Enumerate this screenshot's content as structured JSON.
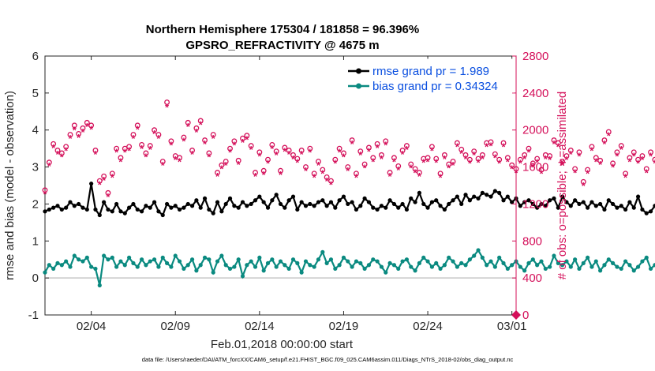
{
  "chart_data": {
    "type": "line",
    "title": [
      "Northern Hemisphere 175304 / 181858 = 96.396%",
      "GPSRO_REFRACTIVITY @ 4675 m"
    ],
    "xlabel": "Feb.01,2018 00:00:00 start",
    "ylabel_left": "rmse and bias (model - observation)",
    "ylabel_right": "# of obs: o=possible; ∗=assimilated",
    "footer": "data file: /Users/raeder/DAI/ATM_forcXX/CAM6_setup/f.e21.FHIST_BGC.f09_025.CAM6assim.011/Diags_NTrS_2018-02/obs_diag_output.nc",
    "x_ticks": [
      "02/04",
      "02/09",
      "02/14",
      "02/19",
      "02/24",
      "03/01"
    ],
    "x_tick_days": [
      3,
      8,
      13,
      18,
      23,
      28
    ],
    "xlim_days": [
      0.25,
      28.25
    ],
    "ylim_left": [
      -1,
      6
    ],
    "y_ticks_left": [
      "-1",
      "0",
      "1",
      "2",
      "3",
      "4",
      "5",
      "6"
    ],
    "ylim_right": [
      0,
      2800
    ],
    "y_ticks_right": [
      "0",
      "400",
      "800",
      "1200",
      "1600",
      "2000",
      "2400",
      "2800"
    ],
    "grid": false,
    "legend_position": "top-right",
    "colors": {
      "rmse": "#000000",
      "bias": "#0a8a80",
      "obs": "#d4105a",
      "zero_line": "#c8c8c8",
      "legend_text": "#0a4fe0"
    },
    "series": [
      {
        "name": "rmse grand pr = 1.989",
        "axis": "left",
        "color": "#000000",
        "values": [
          1.8,
          1.85,
          1.9,
          1.95,
          1.85,
          1.9,
          2.05,
          1.95,
          2.0,
          1.9,
          1.85,
          2.55,
          1.85,
          1.7,
          2.05,
          1.85,
          1.8,
          2.0,
          1.8,
          1.75,
          1.9,
          2.0,
          1.85,
          1.8,
          1.95,
          1.9,
          2.05,
          1.8,
          1.7,
          2.0,
          1.9,
          1.95,
          1.85,
          1.9,
          2.0,
          1.95,
          2.1,
          1.9,
          2.15,
          1.85,
          1.75,
          2.05,
          1.8,
          2.0,
          2.15,
          1.95,
          1.9,
          2.05,
          1.95,
          2.0,
          2.1,
          2.2,
          2.05,
          1.9,
          2.1,
          2.25,
          2.0,
          1.9,
          2.1,
          2.2,
          1.85,
          2.05,
          1.95,
          2.0,
          1.95,
          2.05,
          2.1,
          1.95,
          2.05,
          1.9,
          2.1,
          2.2,
          2.0,
          2.05,
          1.85,
          1.95,
          2.15,
          2.05,
          1.9,
          1.85,
          1.95,
          1.9,
          2.1,
          2.0,
          1.9,
          2.0,
          1.85,
          2.15,
          2.05,
          2.3,
          2.0,
          1.9,
          2.05,
          2.1,
          1.95,
          1.85,
          2.0,
          2.1,
          2.2,
          2.0,
          2.25,
          2.1,
          2.2,
          2.15,
          2.3,
          2.25,
          2.2,
          2.35,
          2.3,
          2.1,
          2.2,
          2.05,
          2.15,
          1.95,
          2.05,
          2.1,
          2.0,
          1.9,
          2.0,
          1.95,
          2.1,
          2.15,
          1.9,
          2.2,
          2.05,
          1.95,
          2.1,
          2.0,
          2.05,
          1.9,
          2.05,
          1.95,
          2.0,
          1.85,
          2.1,
          2.0,
          1.9,
          1.95,
          1.85,
          2.05,
          1.9,
          2.2,
          1.85,
          1.75,
          1.8,
          1.95,
          1.7,
          1.85,
          1.8,
          1.9,
          2.05,
          1.85,
          1.95,
          1.8,
          2.0,
          2.1,
          1.9,
          2.0,
          1.85,
          2.15,
          1.95,
          2.05,
          1.9,
          2.0,
          1.8,
          2.1,
          1.9,
          1.85,
          1.95,
          2.05,
          1.8,
          1.95,
          1.85,
          1.8,
          1.9,
          2.05,
          1.75,
          2.25
        ]
      },
      {
        "name": "bias grand pr = 0.34324",
        "axis": "left",
        "color": "#0a8a80",
        "values": [
          0.15,
          0.35,
          0.25,
          0.4,
          0.35,
          0.45,
          0.3,
          0.6,
          0.5,
          0.45,
          0.55,
          0.3,
          0.25,
          -0.2,
          0.6,
          0.5,
          0.55,
          0.3,
          0.45,
          0.35,
          0.55,
          0.4,
          0.3,
          0.5,
          0.35,
          0.45,
          0.5,
          0.3,
          0.55,
          0.4,
          0.3,
          0.6,
          0.45,
          0.25,
          0.35,
          0.5,
          0.2,
          0.35,
          0.55,
          0.5,
          0.15,
          0.45,
          0.6,
          0.35,
          0.25,
          0.3,
          0.5,
          0.05,
          0.35,
          0.45,
          0.3,
          0.55,
          0.2,
          0.4,
          0.5,
          0.3,
          0.45,
          0.35,
          0.25,
          0.5,
          0.4,
          0.15,
          0.45,
          0.35,
          0.3,
          0.5,
          0.7,
          0.4,
          0.5,
          0.25,
          0.35,
          0.55,
          0.45,
          0.3,
          0.45,
          0.4,
          0.25,
          0.35,
          0.5,
          0.45,
          0.3,
          0.15,
          0.4,
          0.35,
          0.25,
          0.45,
          0.5,
          0.3,
          0.2,
          0.4,
          0.55,
          0.45,
          0.3,
          0.4,
          0.25,
          0.35,
          0.55,
          0.45,
          0.3,
          0.4,
          0.35,
          0.5,
          0.6,
          0.75,
          0.55,
          0.35,
          0.45,
          0.3,
          0.55,
          0.4,
          0.25,
          0.35,
          0.45,
          0.3,
          0.2,
          0.4,
          0.5,
          0.35,
          0.45,
          0.25,
          0.3,
          0.6,
          0.4,
          0.35,
          0.45,
          0.3,
          0.5,
          0.25,
          0.4,
          0.55,
          0.3,
          0.45,
          0.2,
          0.35,
          0.5,
          0.4,
          0.3,
          0.25,
          0.45,
          0.35,
          0.2,
          0.3,
          0.45,
          0.55,
          0.25,
          0.35,
          0.3,
          0.4,
          0.25,
          0.45,
          0.35,
          0.3,
          0.5,
          0.35,
          0.4,
          0.3,
          0.45,
          0.25,
          0.35,
          0.4,
          0.55,
          0.3,
          0.75,
          0.45,
          0.35,
          0.4,
          0.25,
          0.5,
          0.35,
          0.3,
          0.15,
          0.4,
          0.3,
          0.25,
          0.35,
          0.4,
          0.3,
          0.35
        ]
      },
      {
        "name": "possible",
        "axis": "right",
        "marker": "o",
        "color": "#d4105a",
        "values": [
          1350,
          1650,
          1850,
          1780,
          1750,
          1820,
          1950,
          2050,
          1960,
          2020,
          2080,
          2050,
          1780,
          1450,
          1500,
          1320,
          1530,
          1800,
          1700,
          1800,
          1820,
          1950,
          2050,
          1840,
          1750,
          1830,
          2000,
          1950,
          1660,
          2300,
          1880,
          1720,
          1700,
          1920,
          2080,
          1780,
          2020,
          2100,
          1890,
          1750,
          1950,
          1540,
          1620,
          1660,
          1800,
          1880,
          1670,
          1910,
          1940,
          1830,
          1540,
          1760,
          1560,
          1680,
          1840,
          1770,
          1560,
          1810,
          1780,
          1730,
          1690,
          1780,
          1600,
          1800,
          1530,
          1660,
          1570,
          1490,
          1450,
          1680,
          1800,
          1750,
          1600,
          1890,
          1530,
          1770,
          1630,
          1810,
          1700,
          1850,
          1730,
          1880,
          1540,
          1700,
          1610,
          1780,
          1830,
          1630,
          1580,
          1540,
          1690,
          1700,
          1820,
          1690,
          1530,
          1730,
          1630,
          1660,
          1860,
          1790,
          1730,
          1680,
          1770,
          1690,
          1730,
          1860,
          1870,
          1740,
          1680,
          1860,
          1700,
          1620,
          1580,
          1680,
          1730,
          1800,
          1640,
          1690,
          1570,
          1730,
          1720,
          1890,
          1860,
          1660,
          1720,
          1780,
          1580,
          1760,
          1440,
          1570,
          1820,
          1700,
          1670,
          1890,
          1980,
          1640,
          1760,
          1830,
          1530,
          1700,
          1760,
          1680,
          1720,
          1580,
          1760,
          1680,
          1830,
          1630,
          1730,
          1740,
          1770,
          1810,
          1720,
          1760,
          1870,
          1780,
          1800,
          1840,
          1690,
          1790,
          1740,
          1690,
          1650,
          1780,
          1760,
          1680,
          1820,
          1690,
          1770,
          1700,
          1800,
          1700
        ]
      },
      {
        "name": "assimilated",
        "axis": "right",
        "marker": "*",
        "color": "#d4105a",
        "values": [
          1320,
          1620,
          1820,
          1750,
          1720,
          1790,
          1920,
          2010,
          1930,
          1990,
          2050,
          2020,
          1750,
          1420,
          1470,
          1290,
          1500,
          1770,
          1670,
          1770,
          1790,
          1920,
          2020,
          1810,
          1720,
          1800,
          1970,
          1920,
          1630,
          2260,
          1850,
          1690,
          1670,
          1890,
          2050,
          1750,
          1990,
          2070,
          1860,
          1720,
          1920,
          1510,
          1590,
          1630,
          1770,
          1850,
          1640,
          1880,
          1910,
          1800,
          1510,
          1730,
          1530,
          1650,
          1810,
          1740,
          1530,
          1780,
          1750,
          1700,
          1660,
          1750,
          1570,
          1770,
          1500,
          1630,
          1540,
          1460,
          1420,
          1650,
          1770,
          1720,
          1570,
          1860,
          1500,
          1740,
          1600,
          1780,
          1670,
          1820,
          1700,
          1850,
          1510,
          1670,
          1580,
          1750,
          1800,
          1600,
          1550,
          1510,
          1660,
          1670,
          1790,
          1660,
          1500,
          1700,
          1600,
          1630,
          1830,
          1760,
          1700,
          1650,
          1740,
          1660,
          1700,
          1830,
          1840,
          1710,
          1650,
          1830,
          1670,
          1590,
          1550,
          1650,
          1700,
          1770,
          1610,
          1660,
          1540,
          1700,
          1690,
          1860,
          1830,
          1630,
          1690,
          1750,
          1550,
          1730,
          1410,
          1540,
          1790,
          1670,
          1640,
          1860,
          1950,
          1610,
          1730,
          1800,
          1500,
          1670,
          1730,
          1650,
          1690,
          1550,
          1730,
          1650,
          1800,
          1600,
          1700,
          1710,
          1740,
          1780,
          1690,
          1730,
          1840,
          1750,
          1770,
          1810,
          1660,
          1760,
          1710,
          1660,
          1620,
          1750,
          1730,
          1650,
          1790,
          1660,
          1740,
          1670,
          1770,
          1670
        ]
      }
    ],
    "x_start_day": 0.25,
    "x_step_days": 0.25
  }
}
